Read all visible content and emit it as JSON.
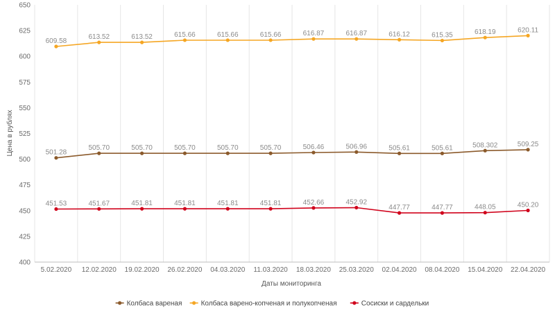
{
  "chart_data": {
    "type": "line",
    "title": "",
    "xlabel": "Даты мониторинга",
    "ylabel": "Цена в рублях",
    "ylim": [
      400,
      650
    ],
    "yticks": [
      400,
      425,
      450,
      475,
      500,
      525,
      550,
      575,
      600,
      625,
      650
    ],
    "grid": "vertical",
    "legend_position": "bottom-center",
    "categories": [
      "5.02.2020",
      "12.02.2020",
      "19.02.2020",
      "26.02.2020",
      "04.03.2020",
      "11.03.2020",
      "18.03.2020",
      "25.03.2020",
      "02.04.2020",
      "08.04.2020",
      "15.04.2020",
      "22.04.2020"
    ],
    "series": [
      {
        "name": "Колбаса вареная",
        "color": "#8B5A2B",
        "values": [
          501.28,
          505.7,
          505.7,
          505.7,
          505.7,
          505.7,
          506.46,
          506.96,
          505.61,
          505.61,
          508.302,
          509.25
        ],
        "labels": [
          "501.28",
          "505.70",
          "505.70",
          "505.70",
          "505.70",
          "505.70",
          "506.46",
          "506.96",
          "505.61",
          "505.61",
          "508.302",
          "509.25"
        ]
      },
      {
        "name": "Колбаса варено-копченая и полукопченая",
        "color": "#F5A623",
        "values": [
          609.58,
          613.52,
          613.52,
          615.66,
          615.66,
          615.66,
          616.87,
          616.87,
          616.12,
          615.35,
          618.19,
          620.11
        ],
        "labels": [
          "609.58",
          "613.52",
          "613.52",
          "615.66",
          "615.66",
          "615.66",
          "616.87",
          "616.87",
          "616.12",
          "615.35",
          "618.19",
          "620.11"
        ]
      },
      {
        "name": "Сосиски и сардельки",
        "color": "#D0021B",
        "values": [
          451.53,
          451.67,
          451.81,
          451.81,
          451.81,
          451.81,
          452.66,
          452.92,
          447.77,
          447.77,
          448.05,
          450.2
        ],
        "labels": [
          "451.53",
          "451.67",
          "451.81",
          "451.81",
          "451.81",
          "451.81",
          "452.66",
          "452.92",
          "447.77",
          "447.77",
          "448.05",
          "450.20"
        ]
      }
    ]
  }
}
